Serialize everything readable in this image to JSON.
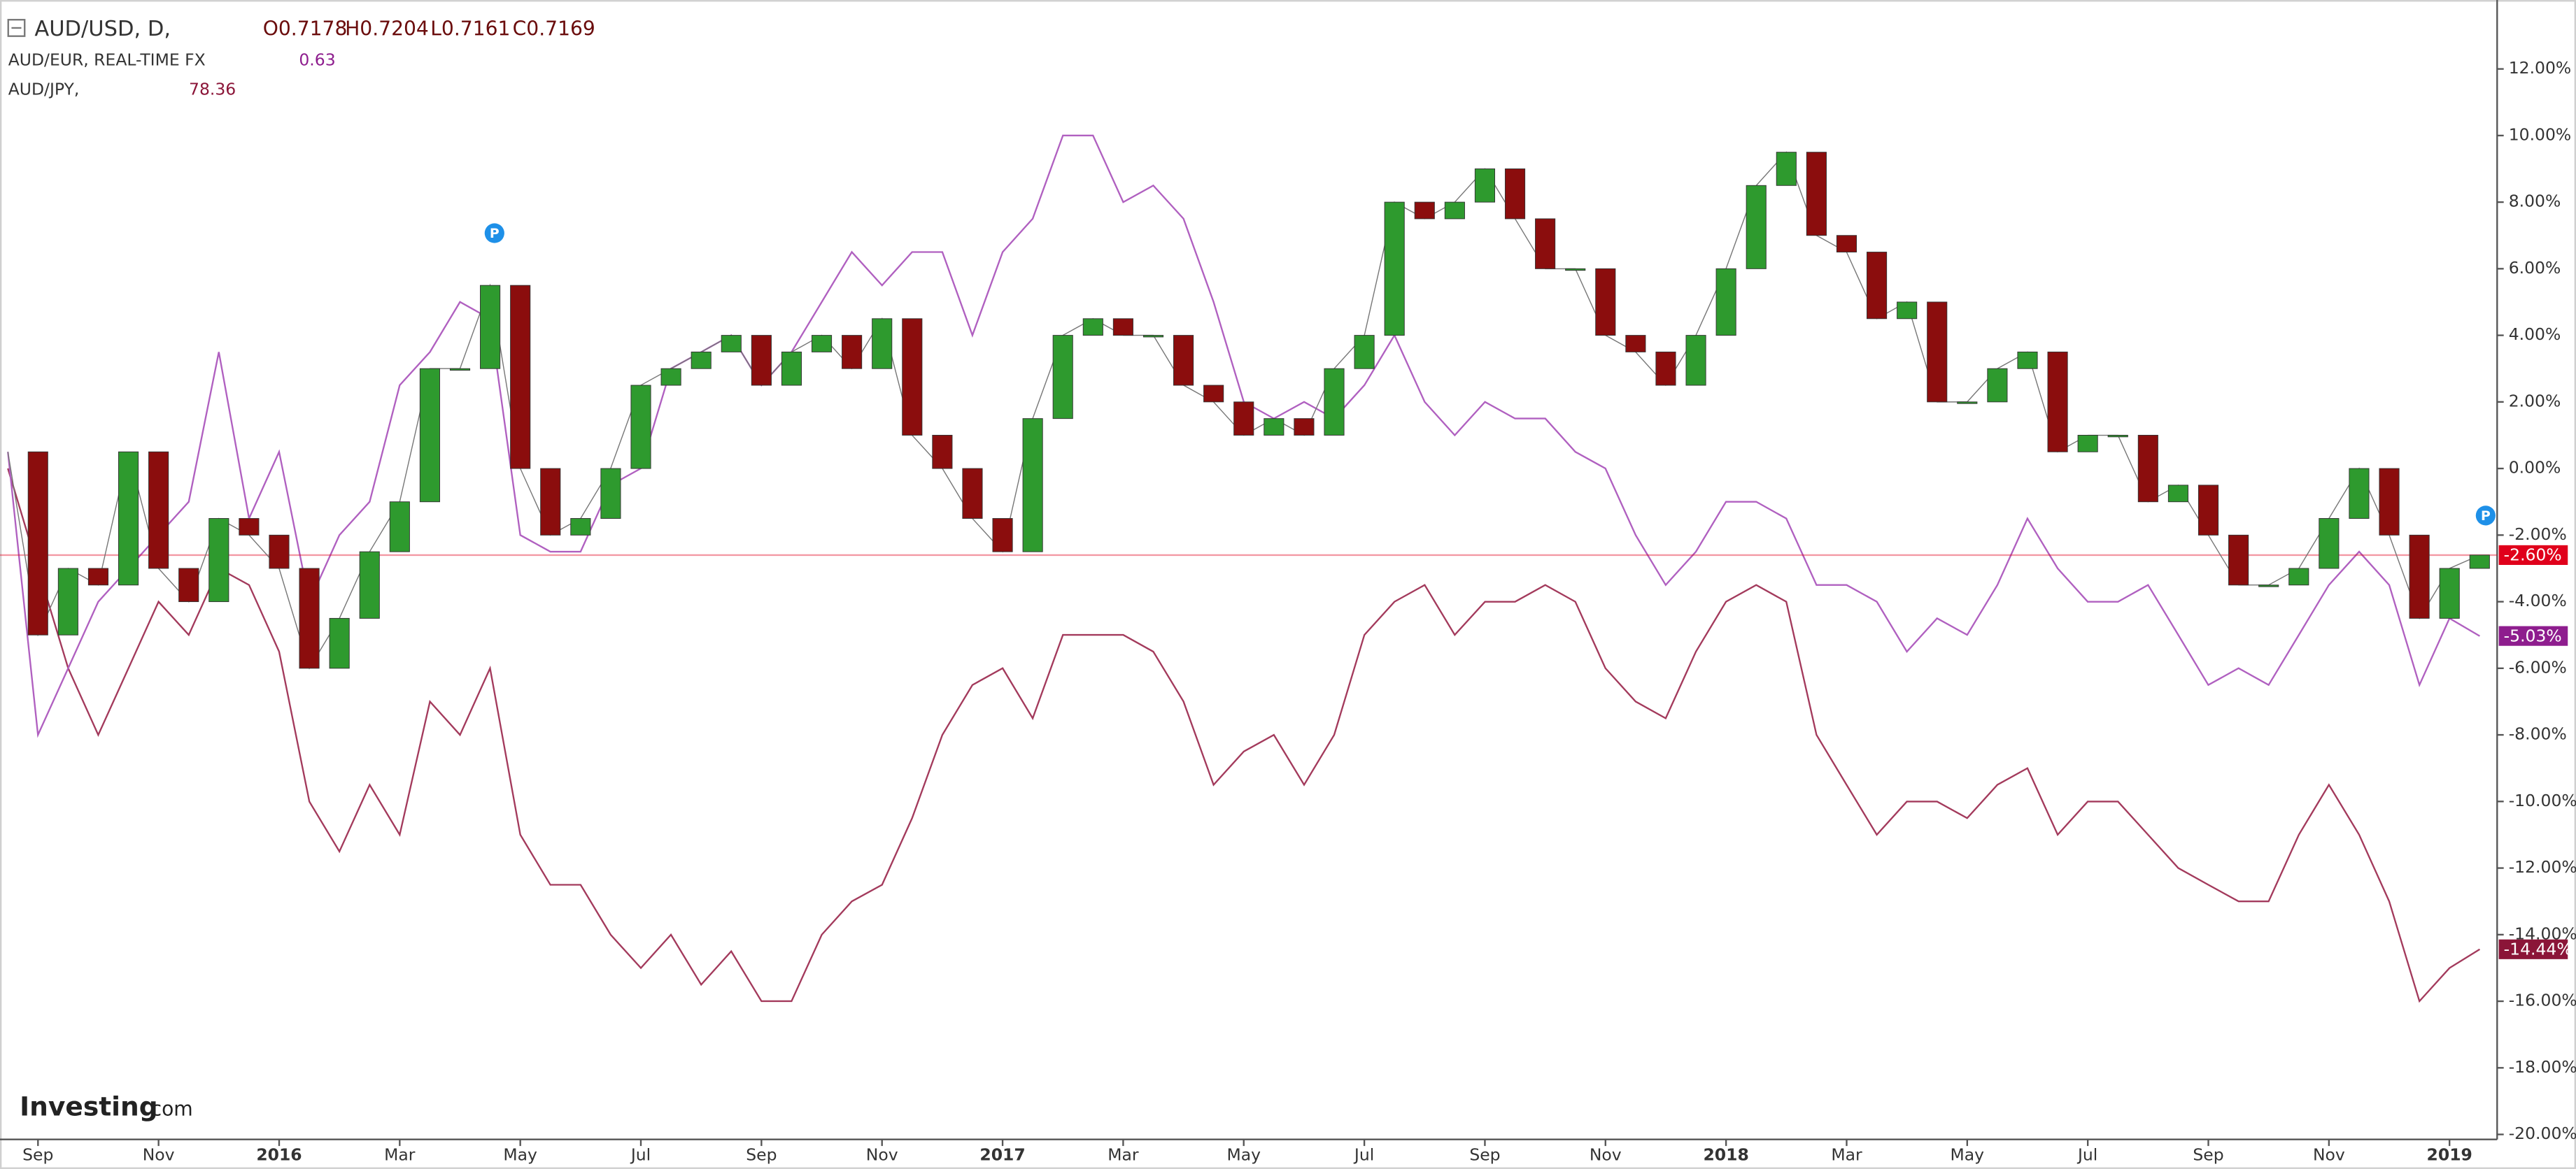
{
  "chart_data": {
    "type": "line",
    "header": {
      "quote": [
        "O0.7178",
        "H0.7204",
        "L0.7161",
        "C0.7169"
      ]
    },
    "brand": "Investing",
    "brand_suffix": ".com",
    "annotations": [
      "P",
      "P"
    ],
    "x": [
      -0.5,
      0,
      0.5,
      1,
      1.5,
      2,
      2.5,
      3,
      3.5,
      4,
      4.5,
      5,
      5.5,
      6,
      6.5,
      7,
      7.5,
      8,
      8.5,
      9,
      9.5,
      10,
      10.5,
      11,
      11.5,
      12,
      12.5,
      13,
      13.5,
      14,
      14.5,
      15,
      15.5,
      16,
      16.5,
      17,
      17.5,
      18,
      18.5,
      19,
      19.5,
      20,
      20.5,
      21,
      21.5,
      22,
      22.5,
      23,
      23.5,
      24,
      24.5,
      25,
      25.5,
      26,
      26.5,
      27,
      27.5,
      28,
      28.5,
      29,
      29.5,
      30,
      30.5,
      31,
      31.5,
      32,
      32.5,
      33,
      33.5,
      34,
      34.5,
      35,
      35.5,
      36,
      36.5,
      37,
      37.5,
      38,
      38.5,
      39,
      39.5,
      40,
      40.5
    ],
    "xlim": [
      -0.63,
      40.79
    ],
    "xticks": [
      {
        "value": 0,
        "label": "Sep"
      },
      {
        "value": 2,
        "label": "Nov"
      },
      {
        "value": 4,
        "label": "2016"
      },
      {
        "value": 6,
        "label": "Mar"
      },
      {
        "value": 8,
        "label": "May"
      },
      {
        "value": 10,
        "label": "Jul"
      },
      {
        "value": 12,
        "label": "Sep"
      },
      {
        "value": 14,
        "label": "Nov"
      },
      {
        "value": 16,
        "label": "2017"
      },
      {
        "value": 18,
        "label": "Mar"
      },
      {
        "value": 20,
        "label": "May"
      },
      {
        "value": 22,
        "label": "Jul"
      },
      {
        "value": 24,
        "label": "Sep"
      },
      {
        "value": 26,
        "label": "Nov"
      },
      {
        "value": 28,
        "label": "2018"
      },
      {
        "value": 30,
        "label": "Mar"
      },
      {
        "value": 32,
        "label": "May"
      },
      {
        "value": 34,
        "label": "Jul"
      },
      {
        "value": 36,
        "label": "Sep"
      },
      {
        "value": 38,
        "label": "Nov"
      },
      {
        "value": 40,
        "label": "2019"
      }
    ],
    "ylim": [
      -20.15,
      14.07
    ],
    "yticks": [
      {
        "value": 12,
        "label": "12.00%"
      },
      {
        "value": 10,
        "label": "10.00%"
      },
      {
        "value": 8,
        "label": "8.00%"
      },
      {
        "value": 6,
        "label": "6.00%"
      },
      {
        "value": 4,
        "label": "4.00%"
      },
      {
        "value": 2,
        "label": "2.00%"
      },
      {
        "value": 0,
        "label": "0.00%"
      },
      {
        "value": -2,
        "label": "-2.00%"
      },
      {
        "value": -4,
        "label": "-4.00%"
      },
      {
        "value": -6,
        "label": "-6.00%"
      },
      {
        "value": -8,
        "label": "-8.00%"
      },
      {
        "value": -10,
        "label": "-10.00%"
      },
      {
        "value": -12,
        "label": "-12.00%"
      },
      {
        "value": -14,
        "label": "-14.00%"
      },
      {
        "value": -16,
        "label": "-16.00%"
      },
      {
        "value": -18,
        "label": "-18.00%"
      },
      {
        "value": -20,
        "label": "-20.00%"
      }
    ],
    "grid": false,
    "series": [
      {
        "name": "AUD/USD, D,",
        "kind": "candlestick",
        "color": "#e0001b",
        "up_color": "#2e9a2e",
        "down_color": "#8b0d0d",
        "last_label": "-2.60%",
        "values": [
          0.5,
          -5,
          -3,
          -3.5,
          0.5,
          -3,
          -4,
          -1.5,
          -2,
          -3,
          -6,
          -4.5,
          -2.5,
          -1,
          3,
          3,
          5.5,
          0,
          -2,
          -1.5,
          0,
          2.5,
          3,
          3.5,
          4,
          2.5,
          3.5,
          4,
          3,
          4.5,
          1,
          0,
          -1.5,
          -2.5,
          1.5,
          4,
          4.5,
          4,
          4,
          2.5,
          2,
          1,
          1.5,
          1,
          3,
          4,
          8,
          7.5,
          8,
          9,
          7.5,
          6,
          6,
          4,
          3.5,
          2.5,
          4,
          6,
          8.5,
          9.5,
          7,
          6.5,
          4.5,
          5,
          2,
          2,
          3,
          3.5,
          0.5,
          1,
          1,
          -1,
          -0.5,
          -2,
          -3.5,
          -3.5,
          -3,
          -1.5,
          0,
          -2,
          -4.5,
          -3,
          -2.6
        ]
      },
      {
        "name": "AUD/EUR, REAL-TIME FX",
        "quote": "0.63",
        "color": "#b060c0",
        "last_label": "-5.03%",
        "values": [
          0.5,
          -8,
          -6,
          -4,
          -3,
          -2,
          -1,
          3.5,
          -1.5,
          0.5,
          -4,
          -2,
          -1,
          2.5,
          3.5,
          5,
          4.5,
          -2,
          -2.5,
          -2.5,
          -0.5,
          0,
          3,
          3.5,
          4,
          2.5,
          3.5,
          5,
          6.5,
          5.5,
          6.5,
          6.5,
          4,
          6.5,
          7.5,
          10,
          10,
          8,
          8.5,
          7.5,
          5,
          2,
          1.5,
          2,
          1.5,
          2.5,
          4,
          2,
          1,
          2,
          1.5,
          1.5,
          0.5,
          0,
          -2,
          -3.5,
          -2.5,
          -1,
          -1,
          -1.5,
          -3.5,
          -3.5,
          -4,
          -5.5,
          -4.5,
          -5,
          -3.5,
          -1.5,
          -3,
          -4,
          -4,
          -3.5,
          -5,
          -6.5,
          -6,
          -6.5,
          -5,
          -3.5,
          -2.5,
          -3.5,
          -6.5,
          -4.5,
          -5.03
        ]
      },
      {
        "name": "AUD/JPY,",
        "quote": "78.36",
        "color": "#a33a5c",
        "last_label": "-14.44%",
        "values": [
          0,
          -3,
          -6,
          -8,
          -6,
          -4,
          -5,
          -3,
          -3.5,
          -5.5,
          -10,
          -11.5,
          -9.5,
          -11,
          -7,
          -8,
          -6,
          -11,
          -12.5,
          -12.5,
          -14,
          -15,
          -14,
          -15.5,
          -14.5,
          -16,
          -16,
          -14,
          -13,
          -12.5,
          -10.5,
          -8,
          -6.5,
          -6,
          -7.5,
          -5,
          -5,
          -5,
          -5.5,
          -7,
          -9.5,
          -8.5,
          -8,
          -9.5,
          -8,
          -5,
          -4,
          -3.5,
          -5,
          -4,
          -4,
          -3.5,
          -4,
          -6,
          -7,
          -7.5,
          -5.5,
          -4,
          -3.5,
          -4,
          -8,
          -9.5,
          -11,
          -10,
          -10,
          -10.5,
          -9.5,
          -9,
          -11,
          -10,
          -10,
          -11,
          -12,
          -12.5,
          -13,
          -13,
          -11,
          -9.5,
          -11,
          -13,
          -16,
          -15,
          -14.44
        ]
      }
    ]
  }
}
